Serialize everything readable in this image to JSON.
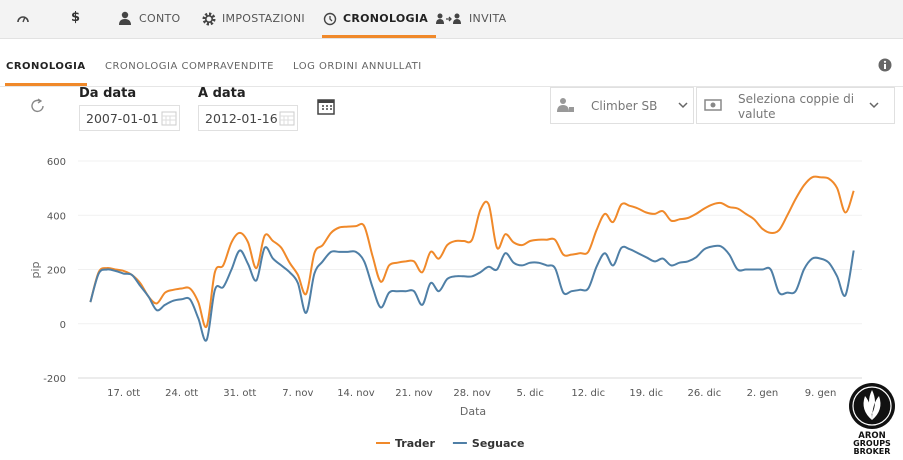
{
  "nav": {
    "currency_icon": "$",
    "items": [
      "CONTO",
      "IMPOSTAZIONI",
      "CRONOLOGIA",
      "INVITA"
    ],
    "active": 2
  },
  "tabs": {
    "items": [
      "CRONOLOGIA",
      "CRONOLOGIA COMPRAVENDITE",
      "LOG ORDINI ANNULLATI"
    ],
    "active": 0
  },
  "filters": {
    "from_label": "Da data",
    "from_value": "2007-01-01",
    "to_label": "A data",
    "to_value": "2012-01-16",
    "account": "Climber SB",
    "pairs": "Seleziona coppie di valute"
  },
  "chart_data": {
    "type": "line",
    "x_label": "Data",
    "y_label": "pip",
    "categories": [
      null,
      null,
      null,
      null,
      "17. ott",
      null,
      null,
      null,
      null,
      null,
      null,
      "24. ott",
      null,
      null,
      null,
      null,
      null,
      null,
      "31. ott",
      null,
      null,
      null,
      null,
      null,
      null,
      "7. nov",
      null,
      null,
      null,
      null,
      null,
      null,
      "14. nov",
      null,
      null,
      null,
      null,
      null,
      null,
      "21. nov",
      null,
      null,
      null,
      null,
      null,
      null,
      "28. nov",
      null,
      null,
      null,
      null,
      null,
      null,
      "5. dic",
      null,
      null,
      null,
      null,
      null,
      null,
      "12. dic",
      null,
      null,
      null,
      null,
      null,
      null,
      "19. dic",
      null,
      null,
      null,
      null,
      null,
      null,
      "26. dic",
      null,
      null,
      null,
      null,
      null,
      null,
      "2. gen",
      null,
      null,
      null,
      null,
      null,
      null,
      "9. gen",
      null,
      null,
      null,
      null
    ],
    "series": [
      {
        "name": "Trader",
        "color": "#f0892a",
        "values": [
          80,
          190,
          205,
          200,
          195,
          180,
          150,
          100,
          75,
          115,
          125,
          130,
          130,
          80,
          -10,
          190,
          215,
          300,
          335,
          300,
          205,
          325,
          305,
          280,
          225,
          180,
          110,
          260,
          290,
          335,
          355,
          358,
          360,
          360,
          250,
          155,
          215,
          225,
          230,
          230,
          190,
          265,
          240,
          290,
          305,
          305,
          310,
          420,
          440,
          280,
          330,
          300,
          290,
          305,
          310,
          310,
          310,
          255,
          255,
          260,
          265,
          345,
          405,
          375,
          440,
          435,
          425,
          410,
          405,
          415,
          380,
          385,
          390,
          405,
          425,
          440,
          445,
          430,
          425,
          405,
          385,
          350,
          335,
          345,
          400,
          460,
          510,
          540,
          540,
          535,
          500,
          410,
          490
        ]
      },
      {
        "name": "Seguace",
        "color": "#4f7fa6",
        "values": [
          80,
          185,
          200,
          195,
          185,
          180,
          140,
          100,
          50,
          70,
          85,
          90,
          90,
          20,
          -60,
          125,
          135,
          200,
          270,
          220,
          160,
          280,
          240,
          215,
          190,
          150,
          40,
          185,
          230,
          265,
          265,
          265,
          265,
          230,
          135,
          60,
          115,
          120,
          120,
          120,
          70,
          150,
          120,
          165,
          175,
          175,
          175,
          190,
          210,
          200,
          260,
          225,
          215,
          225,
          225,
          215,
          205,
          115,
          120,
          125,
          130,
          210,
          260,
          215,
          280,
          275,
          260,
          245,
          230,
          240,
          215,
          225,
          230,
          245,
          275,
          285,
          285,
          255,
          200,
          200,
          200,
          200,
          200,
          115,
          115,
          120,
          200,
          240,
          240,
          225,
          175,
          105,
          270
        ]
      }
    ],
    "ylim": [
      -200,
      600
    ],
    "yticks": [
      -200,
      0,
      200,
      400,
      600
    ],
    "grid": true,
    "legend": "bottom"
  },
  "logo": {
    "lines": [
      "ARON",
      "GROUPS",
      "BROKER"
    ]
  }
}
